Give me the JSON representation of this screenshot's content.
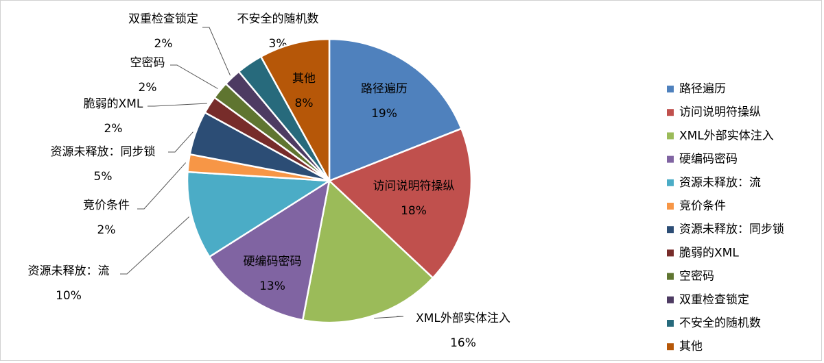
{
  "chart_data": {
    "type": "pie",
    "categories": [
      "路径遍历",
      "访问说明符操纵",
      "XML外部实体注入",
      "硬编码密码",
      "资源未释放：流",
      "竞价条件",
      "资源未释放：同步锁",
      "脆弱的XML",
      "空密码",
      "双重检查锁定",
      "不安全的随机数",
      "其他"
    ],
    "values": [
      19,
      18,
      16,
      13,
      10,
      2,
      5,
      2,
      2,
      2,
      3,
      8
    ],
    "value_labels": [
      "19%",
      "18%",
      "16%",
      "13%",
      "10%",
      "2%",
      "5%",
      "2%",
      "2%",
      "2%",
      "3%",
      "8%"
    ],
    "colors": [
      "#4F81BD",
      "#C0504D",
      "#9BBB59",
      "#8064A2",
      "#4BACC6",
      "#F79646",
      "#2C4D75",
      "#772C2A",
      "#5F7530",
      "#4D3B62",
      "#276A7C",
      "#B65708"
    ],
    "legend": "right"
  }
}
